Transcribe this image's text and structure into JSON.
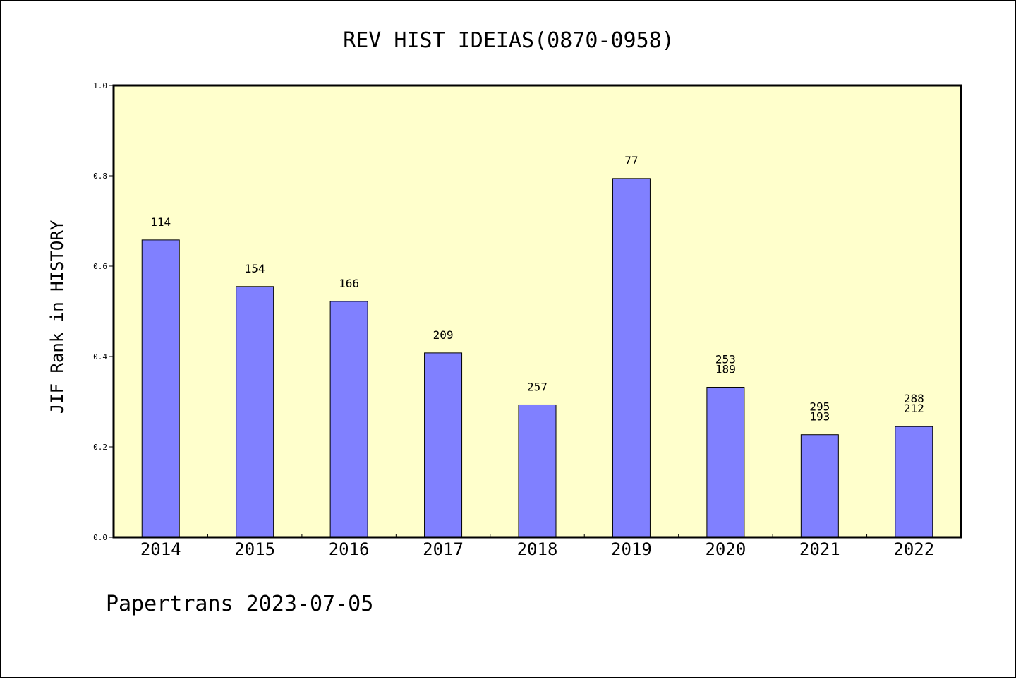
{
  "chart_data": {
    "type": "bar",
    "title": "REV HIST IDEIAS(0870-0958)",
    "xlabel": "",
    "ylabel": "JIF Rank in HISTORY",
    "footer": "Papertrans 2023-07-05",
    "categories": [
      "2014",
      "2015",
      "2016",
      "2017",
      "2018",
      "2019",
      "2020",
      "2021",
      "2022"
    ],
    "values": [
      0.658,
      0.555,
      0.522,
      0.408,
      0.293,
      0.794,
      0.332,
      0.227,
      0.245
    ],
    "bar_labels": [
      [
        "114"
      ],
      [
        "154"
      ],
      [
        "166"
      ],
      [
        "209"
      ],
      [
        "257"
      ],
      [
        "77"
      ],
      [
        "253",
        "189"
      ],
      [
        "295",
        "193"
      ],
      [
        "288",
        "212"
      ]
    ],
    "ylim": [
      0,
      1.0
    ],
    "yticks": [
      "0.0",
      "0.2",
      "0.4",
      "0.6",
      "0.8",
      "1.0"
    ],
    "grid": false,
    "colors": {
      "plot_background": "#ffffcc",
      "bar_fill": "#8080ff",
      "bar_stroke": "#000000"
    }
  }
}
